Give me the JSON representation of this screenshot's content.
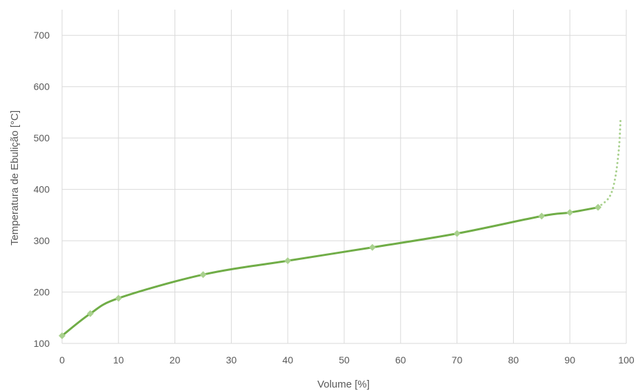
{
  "chart_data": {
    "type": "line",
    "title": "",
    "xlabel": "Volume [%]",
    "ylabel": "Temperatura de Ebulição [°C]",
    "xlim": [
      0,
      100
    ],
    "ylim": [
      100,
      750
    ],
    "x_ticks": [
      0,
      10,
      20,
      30,
      40,
      50,
      60,
      70,
      80,
      90,
      100
    ],
    "y_ticks": [
      100,
      200,
      300,
      400,
      500,
      600,
      700
    ],
    "grid": true,
    "legend": "none",
    "series": [
      {
        "style": "solid",
        "markers": "diamond",
        "color": "#70ad47",
        "marker_color": "#a9d18e",
        "points": [
          {
            "x": 0,
            "y": 115
          },
          {
            "x": 5,
            "y": 158
          },
          {
            "x": 10,
            "y": 188
          },
          {
            "x": 25,
            "y": 234
          },
          {
            "x": 40,
            "y": 261
          },
          {
            "x": 55,
            "y": 287
          },
          {
            "x": 70,
            "y": 314
          },
          {
            "x": 85,
            "y": 348
          },
          {
            "x": 90,
            "y": 355
          },
          {
            "x": 95,
            "y": 365
          }
        ]
      },
      {
        "style": "dotted",
        "markers": "none",
        "color": "#a9d18e",
        "points": [
          {
            "x": 95,
            "y": 365
          },
          {
            "x": 97,
            "y": 385
          },
          {
            "x": 98,
            "y": 420
          },
          {
            "x": 98.7,
            "y": 480
          },
          {
            "x": 99,
            "y": 540
          }
        ]
      }
    ]
  }
}
